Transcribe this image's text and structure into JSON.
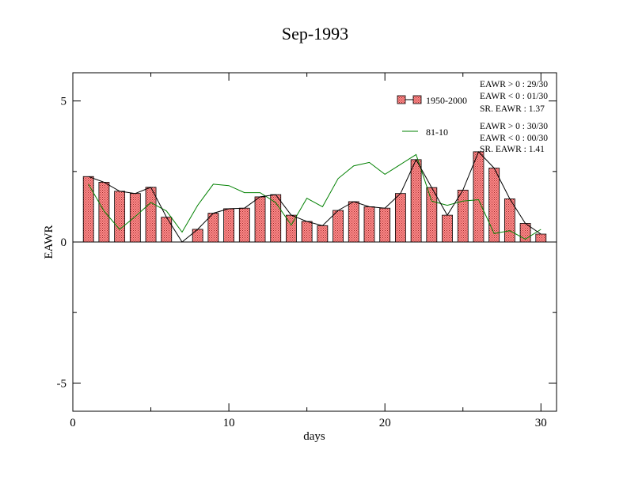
{
  "chart_data": {
    "type": "bar",
    "title": "Sep-1993",
    "xlabel": "days",
    "ylabel": "EAWR",
    "xlim": [
      0,
      31
    ],
    "ylim": [
      -6,
      6
    ],
    "xticks": [
      0,
      10,
      20,
      30
    ],
    "xtick_labels": [
      "0",
      "10",
      "20",
      "30"
    ],
    "yticks": [
      -5,
      0,
      5
    ],
    "ytick_labels": [
      "-5",
      "0",
      "5"
    ],
    "grid": false,
    "legend_position": "top-right",
    "x": [
      1,
      2,
      3,
      4,
      5,
      6,
      7,
      8,
      9,
      10,
      11,
      12,
      13,
      14,
      15,
      16,
      17,
      18,
      19,
      20,
      21,
      22,
      23,
      24,
      25,
      26,
      27,
      28,
      29,
      30
    ],
    "series": [
      {
        "name": "1950-2000",
        "render": "bars-with-line",
        "color": "#ff8080",
        "line_color": "#000000",
        "values": [
          2.32,
          2.12,
          1.8,
          1.72,
          1.94,
          0.88,
          0.0,
          0.45,
          1.02,
          1.18,
          1.2,
          1.6,
          1.68,
          0.95,
          0.73,
          0.58,
          1.12,
          1.43,
          1.25,
          1.2,
          1.72,
          2.92,
          1.93,
          0.95,
          1.84,
          3.2,
          2.62,
          1.53,
          0.66,
          0.28
        ]
      },
      {
        "name": "81-10",
        "render": "line",
        "color": "#008000",
        "values": [
          2.05,
          1.1,
          0.45,
          0.9,
          1.4,
          1.1,
          0.35,
          1.3,
          2.05,
          2.0,
          1.75,
          1.75,
          1.4,
          0.6,
          1.55,
          1.25,
          2.25,
          2.7,
          2.82,
          2.4,
          2.75,
          3.1,
          1.45,
          1.3,
          1.45,
          1.5,
          0.3,
          0.4,
          0.1,
          0.45
        ]
      }
    ],
    "stats": [
      [
        "EAWR > 0 : 29/30",
        "EAWR < 0 : 01/30",
        "SR. EAWR :  1.37"
      ],
      [
        "EAWR > 0 : 30/30",
        "EAWR < 0 : 00/30",
        "SR. EAWR :  1.41"
      ]
    ]
  }
}
